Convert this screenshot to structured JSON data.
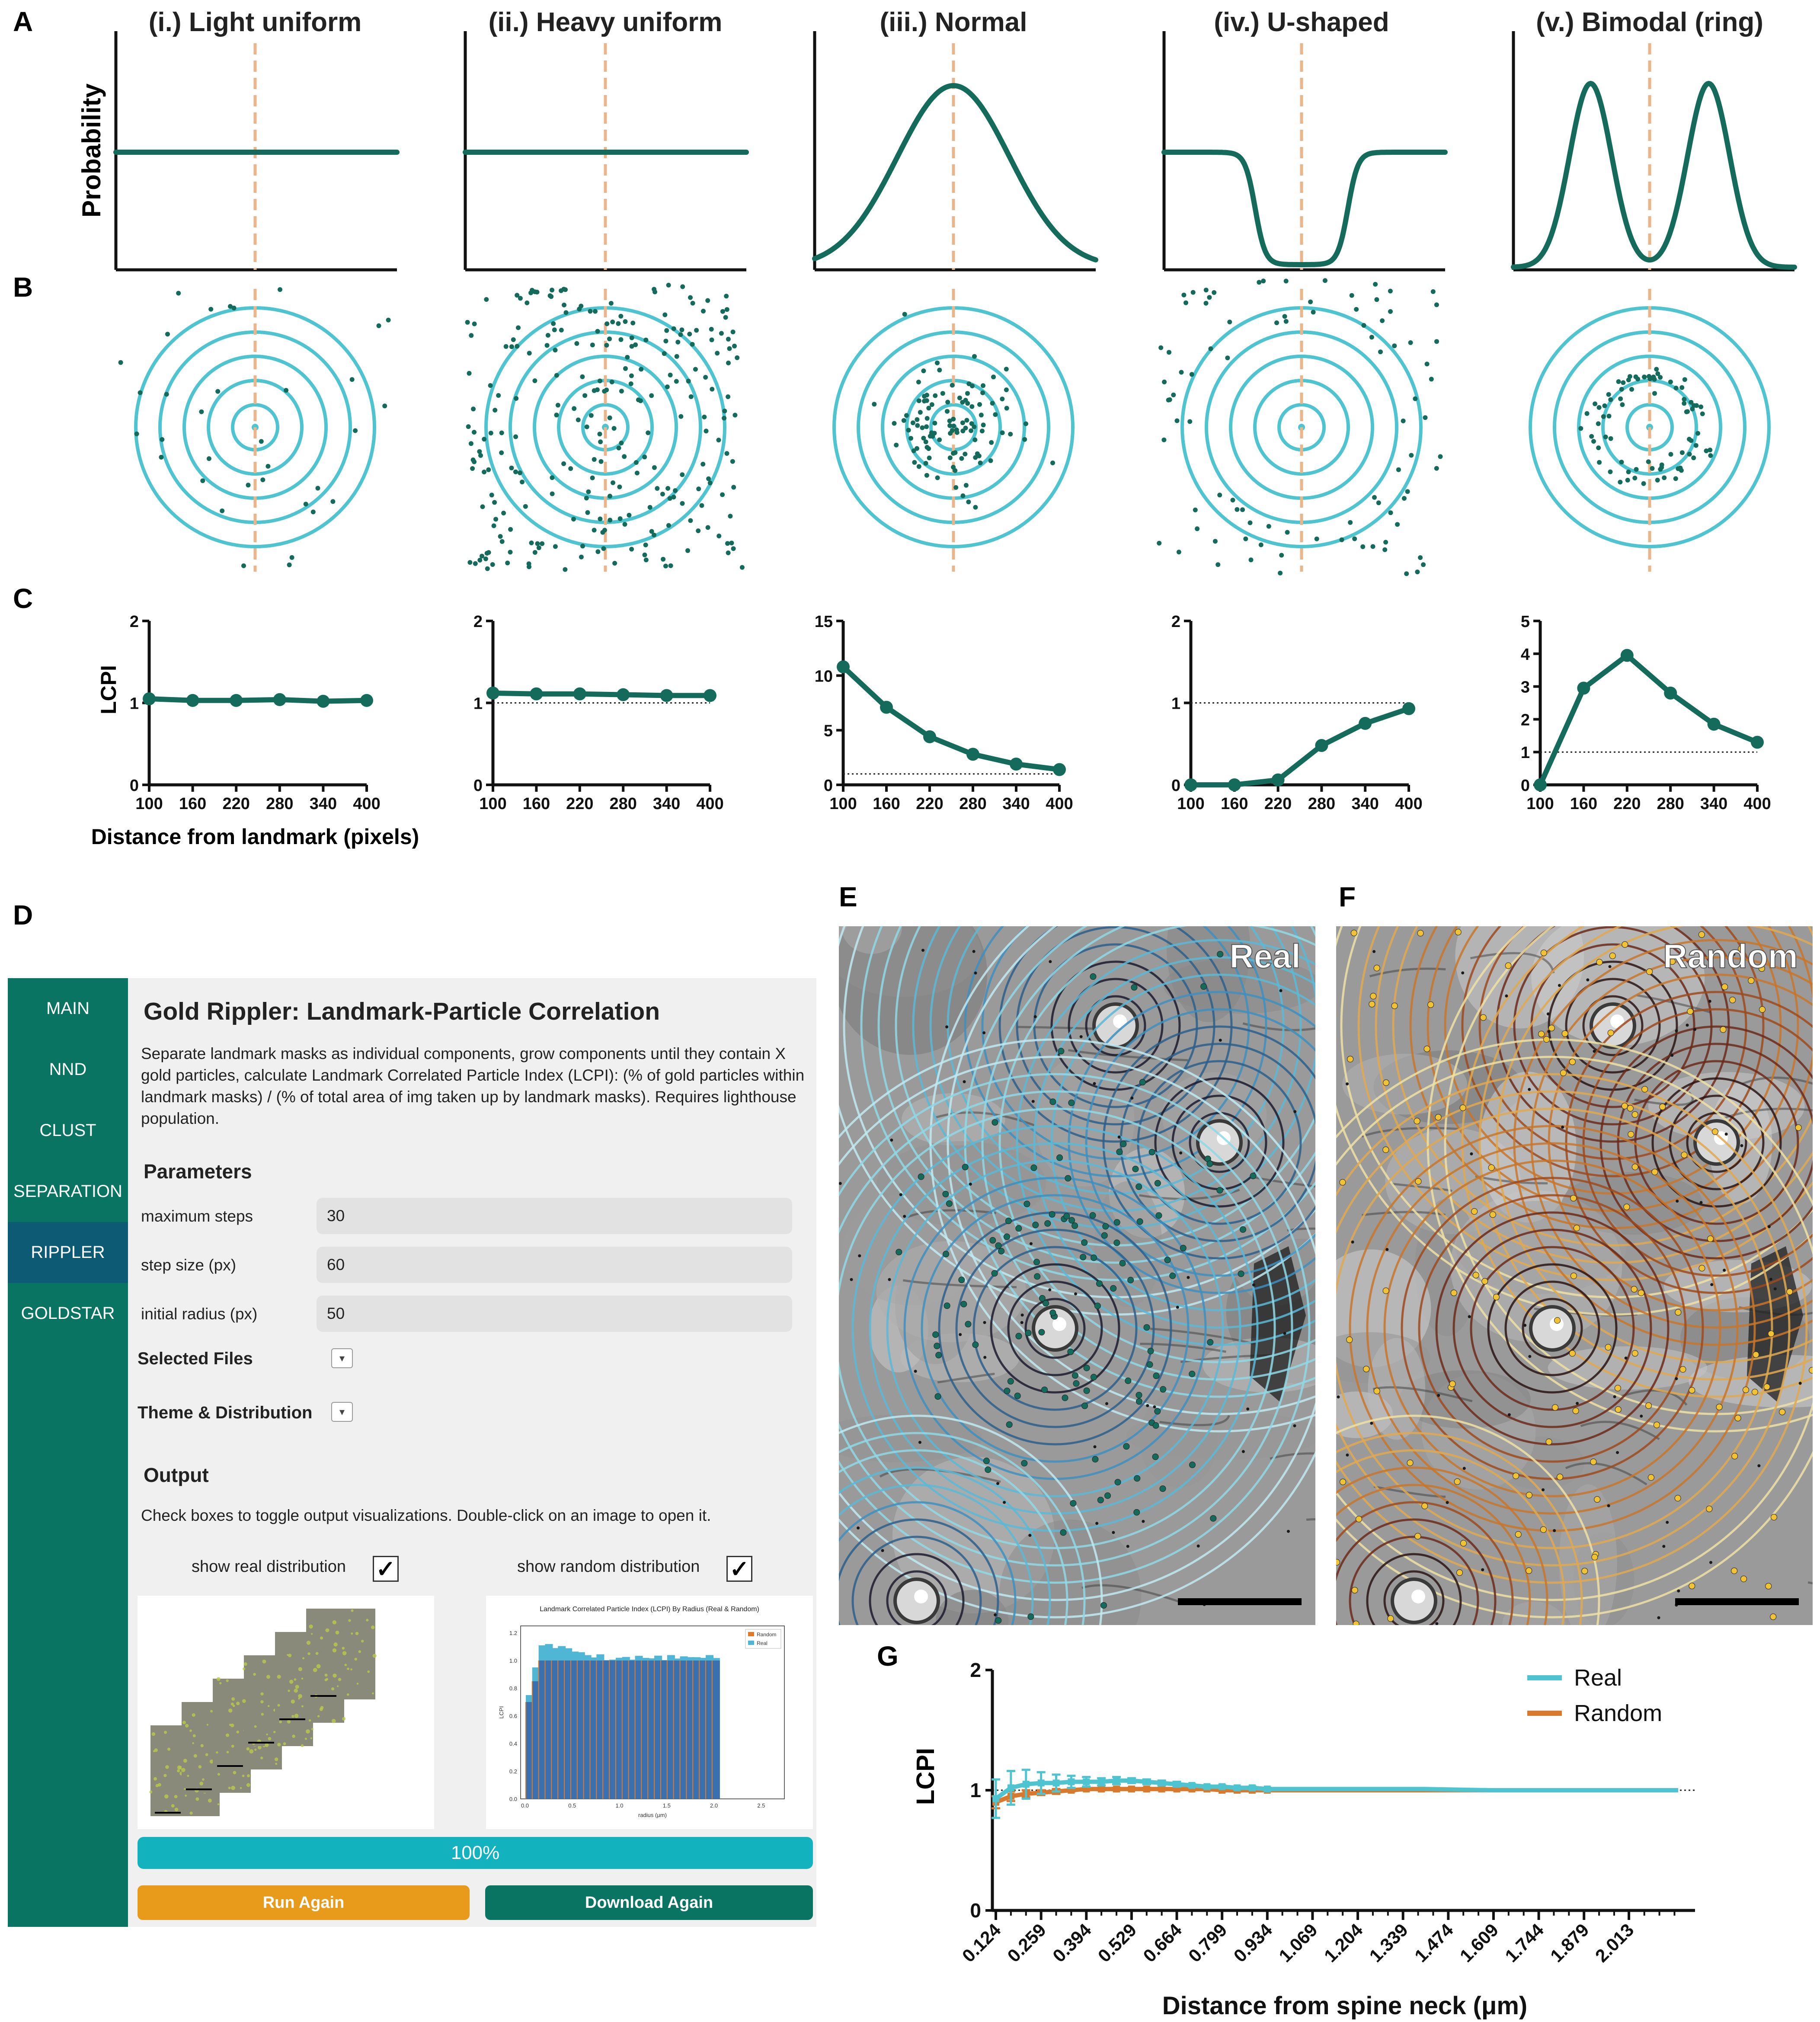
{
  "panel_letters": {
    "a": "A",
    "b": "B",
    "c": "C",
    "d": "D",
    "e": "E",
    "f": "F",
    "g": "G"
  },
  "panel_a": {
    "ylabel": "Probability",
    "titles": [
      "(i.) Light uniform",
      "(ii.) Heavy uniform",
      "(iii.) Normal",
      "(iv.) U-shaped",
      "(v.) Bimodal (ring)"
    ],
    "profiles": [
      "uniform",
      "uniform",
      "normal",
      "u-shaped",
      "bimodal"
    ],
    "line_color": "#146b5b",
    "landmark_line_color": "#e9b68c"
  },
  "panel_b": {
    "ring_count": 5,
    "ring_color": "#4ec4d0",
    "particle_color": "#146b5b",
    "distributions": [
      "light uniform",
      "heavy uniform",
      "normal",
      "u-shaped",
      "bimodal (ring)"
    ]
  },
  "panel_c": {
    "ylabel": "LCPI",
    "xlabel": "Distance from landmark (pixels)",
    "line_color": "#146b5b"
  },
  "chart_data": [
    {
      "type": "line",
      "panel": "C-i",
      "x": [
        100,
        160,
        220,
        280,
        340,
        400
      ],
      "values": [
        1.05,
        1.03,
        1.03,
        1.04,
        1.02,
        1.03
      ],
      "ylim": [
        0,
        2
      ],
      "yticks": [
        0,
        1,
        2
      ],
      "xticks": [
        100,
        160,
        220,
        280,
        340,
        400
      ],
      "reference_line": null
    },
    {
      "type": "line",
      "panel": "C-ii",
      "x": [
        100,
        160,
        220,
        280,
        340,
        400
      ],
      "values": [
        1.12,
        1.11,
        1.11,
        1.1,
        1.09,
        1.09
      ],
      "ylim": [
        0,
        2
      ],
      "yticks": [
        0,
        1,
        2
      ],
      "xticks": [
        100,
        160,
        220,
        280,
        340,
        400
      ],
      "reference_line": 1
    },
    {
      "type": "line",
      "panel": "C-iii",
      "x": [
        100,
        160,
        220,
        280,
        340,
        400
      ],
      "values": [
        10.8,
        7.1,
        4.4,
        2.8,
        1.9,
        1.4
      ],
      "ylim": [
        0,
        15
      ],
      "yticks": [
        0,
        5,
        10,
        15
      ],
      "xticks": [
        100,
        160,
        220,
        280,
        340,
        400
      ],
      "reference_line": 1
    },
    {
      "type": "line",
      "panel": "C-iv",
      "x": [
        100,
        160,
        220,
        280,
        340,
        400
      ],
      "values": [
        0.0,
        0.0,
        0.06,
        0.48,
        0.75,
        0.93
      ],
      "ylim": [
        0,
        2
      ],
      "yticks": [
        0,
        1,
        2
      ],
      "xticks": [
        100,
        160,
        220,
        280,
        340,
        400
      ],
      "reference_line": 1
    },
    {
      "type": "line",
      "panel": "C-v",
      "x": [
        100,
        160,
        220,
        280,
        340,
        400
      ],
      "values": [
        0.0,
        2.95,
        3.95,
        2.8,
        1.85,
        1.3
      ],
      "ylim": [
        0,
        5
      ],
      "yticks": [
        0,
        1,
        2,
        3,
        4,
        5
      ],
      "xticks": [
        100,
        160,
        220,
        280,
        340,
        400
      ],
      "reference_line": 1
    },
    {
      "type": "line",
      "panel": "G",
      "xlabel": "Distance from spine neck (μm)",
      "ylabel": "LCPI",
      "ylim": [
        0,
        2
      ],
      "yticks": [
        0,
        1,
        2
      ],
      "xticks": [
        "0.124",
        "0.259",
        "0.394",
        "0.529",
        "0.664",
        "0.799",
        "0.934",
        "1.069",
        "1.204",
        "1.339",
        "1.474",
        "1.609",
        "1.744",
        "1.879",
        "2.013"
      ],
      "x_range": [
        0.124,
        2.2
      ],
      "reference_line": 1,
      "series": [
        {
          "name": "Real",
          "color": "#4ec4d0",
          "x": [
            0.124,
            0.169,
            0.214,
            0.259,
            0.304,
            0.349,
            0.394,
            0.439,
            0.484,
            0.529,
            0.574,
            0.619,
            0.664,
            0.709,
            0.754,
            0.799,
            0.844,
            0.889,
            0.934,
            1.0,
            1.2,
            1.4,
            1.6,
            1.8,
            2.0,
            2.16
          ],
          "values": [
            0.93,
            1.02,
            1.05,
            1.06,
            1.06,
            1.07,
            1.07,
            1.07,
            1.08,
            1.08,
            1.07,
            1.06,
            1.05,
            1.04,
            1.03,
            1.03,
            1.02,
            1.02,
            1.01,
            1.01,
            1.01,
            1.01,
            1.0,
            1.0,
            1.0,
            1.0
          ],
          "errors": [
            0.16,
            0.14,
            0.12,
            0.09,
            0.07,
            0.05,
            0.04,
            0.03,
            0.03,
            0.02,
            0.02,
            0.02,
            0.02,
            0.01,
            0.01,
            0.01,
            0.01,
            0.01,
            0.01,
            0.0,
            0.0,
            0.0,
            0.0,
            0.0,
            0.0,
            0.0
          ]
        },
        {
          "name": "Random",
          "color": "#d9792d",
          "x": [
            0.124,
            0.169,
            0.214,
            0.259,
            0.304,
            0.349,
            0.394,
            0.439,
            0.484,
            0.529,
            0.574,
            0.619,
            0.664,
            0.709,
            0.754,
            0.799,
            0.844,
            0.889,
            0.934,
            1.0,
            1.2,
            1.4,
            1.6,
            1.8,
            2.0,
            2.16
          ],
          "values": [
            0.9,
            0.95,
            0.97,
            0.98,
            0.99,
            1.0,
            1.01,
            1.01,
            1.01,
            1.01,
            1.01,
            1.01,
            1.01,
            1.01,
            1.01,
            1.0,
            1.0,
            1.0,
            1.0,
            1.0,
            1.0,
            1.0,
            1.0,
            1.0,
            1.0,
            1.0
          ],
          "errors": [
            0.05,
            0.04,
            0.03,
            0.02,
            0.02,
            0.01,
            0.01,
            0.01,
            0.01,
            0.01,
            0.01,
            0.01,
            0.01,
            0.01,
            0.01,
            0.0,
            0.0,
            0.0,
            0.0,
            0.0,
            0.0,
            0.0,
            0.0,
            0.0,
            0.0,
            0.0
          ]
        }
      ]
    }
  ],
  "panel_e": {
    "label": "Real",
    "ring_palette": [
      "#1b1b2e",
      "#2d5f8b",
      "#3d8fbf",
      "#5cb8d6",
      "#8fd8e6",
      "#bfeaf1"
    ],
    "particle_color": "#146b5b"
  },
  "panel_f": {
    "label": "Random",
    "ring_palette": [
      "#2a1414",
      "#6b2a1a",
      "#9e4a1c",
      "#c8752a",
      "#e0a950",
      "#efe0a4"
    ],
    "particle_color": "#f1c232"
  },
  "app": {
    "nav": [
      "MAIN",
      "NND",
      "CLUST",
      "SEPARATION",
      "RIPPLER",
      "GOLDSTAR"
    ],
    "active_nav": "RIPPLER",
    "title": "Gold Rippler: Landmark-Particle Correlation",
    "description": "Separate landmark masks as individual components, grow components until they contain X gold particles, calculate Landmark Correlated Particle Index (LCPI): (% of gold particles within landmark masks) / (% of total area of img taken up by landmark masks). Requires lighthouse population.",
    "parameters_heading": "Parameters",
    "params": [
      {
        "label": "maximum steps",
        "value": "30"
      },
      {
        "label": "step size (px)",
        "value": "60"
      },
      {
        "label": "initial radius (px)",
        "value": "50"
      }
    ],
    "selected_files_label": "Selected Files",
    "theme_label": "Theme & Distribution",
    "output_heading": "Output",
    "output_desc": "Check boxes to toggle output visualizations. Double-click on an image to open it.",
    "show_real_label": "show real distribution",
    "show_random_label": "show random distribution",
    "show_real_checked": true,
    "show_random_checked": true,
    "checkmark": "✓",
    "dropdown_icon": "▾",
    "progress_percent": 100,
    "progress_text": "100%",
    "run_label": "Run Again",
    "download_label": "Download Again",
    "run_color": "#e89a1a",
    "download_color": "#0a7462",
    "thumb_chart": {
      "title": "Landmark Correlated Particle Index (LCPI) By Radius (Real & Random)",
      "legend": [
        "Random",
        "Real"
      ],
      "xlabel": "radius (μm)",
      "ylabel": "LCPI",
      "xticks": [
        "0.0",
        "0.5",
        "1.0",
        "1.5",
        "2.0",
        "2.5"
      ],
      "yticks": [
        "0.0",
        "0.2",
        "0.4",
        "0.6",
        "0.8",
        "1.0",
        "1.2"
      ]
    }
  }
}
